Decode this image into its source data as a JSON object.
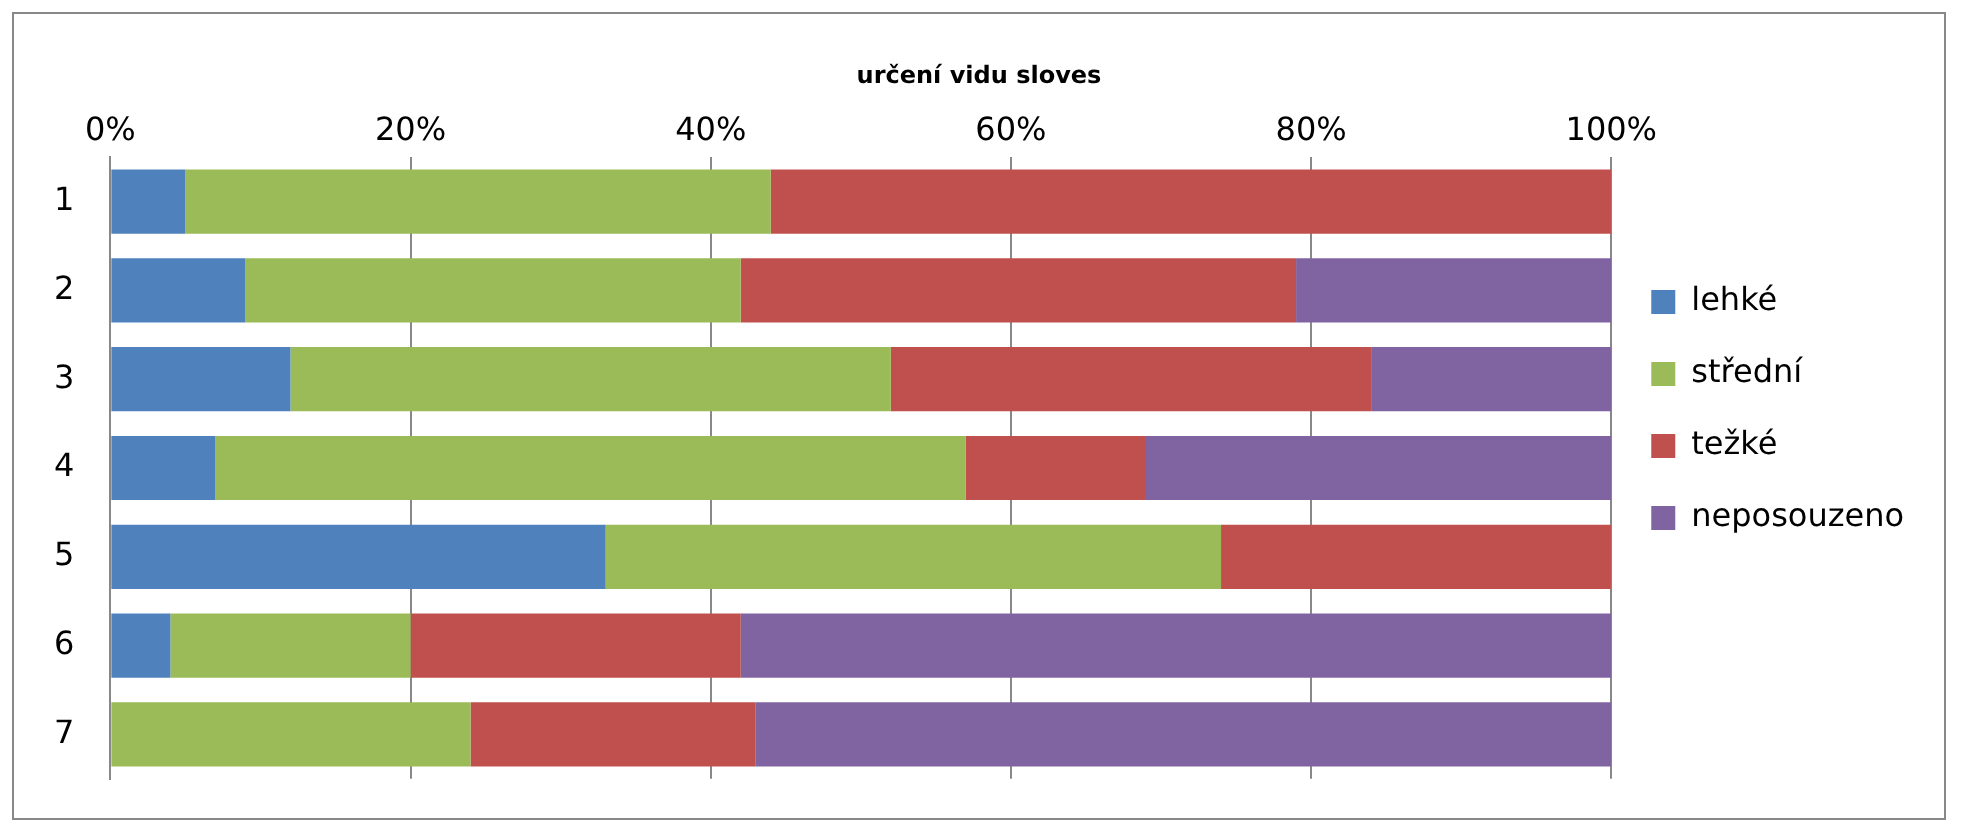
{
  "chart_data": {
    "type": "bar",
    "orientation": "horizontal",
    "stacked": true,
    "title": "určení vidu sloves",
    "categories": [
      "1",
      "2",
      "3",
      "4",
      "5",
      "6",
      "7"
    ],
    "series": [
      {
        "name": "lehké",
        "color": "#4f81bd",
        "values": [
          5,
          9,
          12,
          7,
          33,
          4,
          0
        ]
      },
      {
        "name": "střední",
        "color": "#9bbb59",
        "values": [
          39,
          33,
          40,
          50,
          41,
          16,
          24
        ]
      },
      {
        "name": "težké",
        "color": "#c0504d",
        "values": [
          56,
          37,
          32,
          12,
          26,
          22,
          19
        ]
      },
      {
        "name": "neposouzeno",
        "color": "#8064a2",
        "values": [
          0,
          21,
          16,
          31,
          0,
          58,
          57
        ]
      }
    ],
    "xlim": [
      0,
      100
    ],
    "xticks": [
      {
        "value": 0,
        "label": "0%"
      },
      {
        "value": 20,
        "label": "20%"
      },
      {
        "value": 40,
        "label": "40%"
      },
      {
        "value": 60,
        "label": "60%"
      },
      {
        "value": 80,
        "label": "80%"
      },
      {
        "value": 100,
        "label": "100%"
      }
    ],
    "grid": "x",
    "legend": "right"
  }
}
